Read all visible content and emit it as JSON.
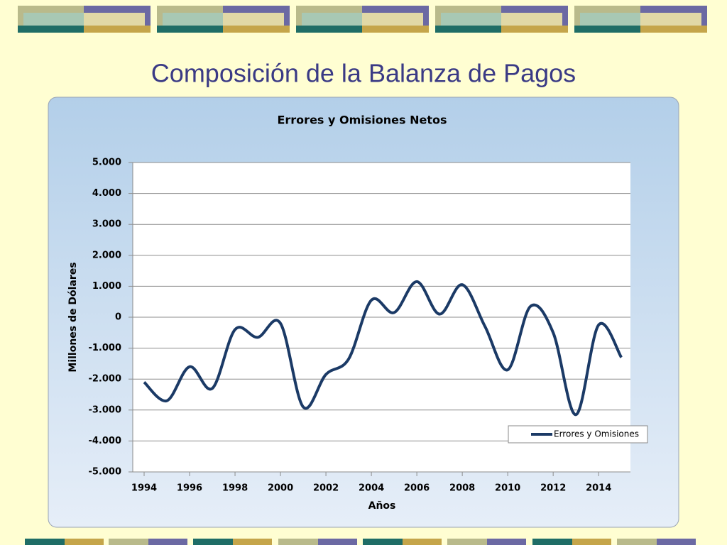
{
  "slide": {
    "title": "Composición de la Balanza de Pagos"
  },
  "chart_data": {
    "type": "line",
    "title": "Errores y Omisiones Netos",
    "x_label": "Años",
    "y_label": "Millones de Dólares",
    "x": [
      1994,
      1995,
      1996,
      1997,
      1998,
      1999,
      2000,
      2001,
      2002,
      2003,
      2004,
      2005,
      2006,
      2007,
      2008,
      2009,
      2010,
      2011,
      2012,
      2013,
      2014,
      2015
    ],
    "series": [
      {
        "name": "Errores y Omisiones",
        "color": "#1b3a66",
        "values": [
          -2100,
          -2700,
          -1600,
          -2300,
          -400,
          -650,
          -200,
          -2900,
          -1850,
          -1350,
          550,
          150,
          1150,
          100,
          1050,
          -300,
          -1700,
          350,
          -500,
          -3150,
          -250,
          -1300
        ]
      }
    ],
    "xlim": [
      1993.5,
      2015.4
    ],
    "xticks": [
      1994,
      1996,
      1998,
      2000,
      2002,
      2004,
      2006,
      2008,
      2010,
      2012,
      2014
    ],
    "ylim": [
      -5000,
      5000
    ],
    "yticks": [
      {
        "value": -5000,
        "label": "-5.000"
      },
      {
        "value": -4000,
        "label": "-4.000"
      },
      {
        "value": -3000,
        "label": "-3.000"
      },
      {
        "value": -2000,
        "label": "-2.000"
      },
      {
        "value": -1000,
        "label": "-1.000"
      },
      0,
      {
        "value": 1000,
        "label": "1.000"
      },
      {
        "value": 2000,
        "label": "2.000"
      },
      {
        "value": 3000,
        "label": "3.000"
      },
      {
        "value": 4000,
        "label": "4.000"
      },
      {
        "value": 5000,
        "label": "5.000"
      }
    ],
    "grid": true,
    "legend": "lower right",
    "smooth": true
  }
}
